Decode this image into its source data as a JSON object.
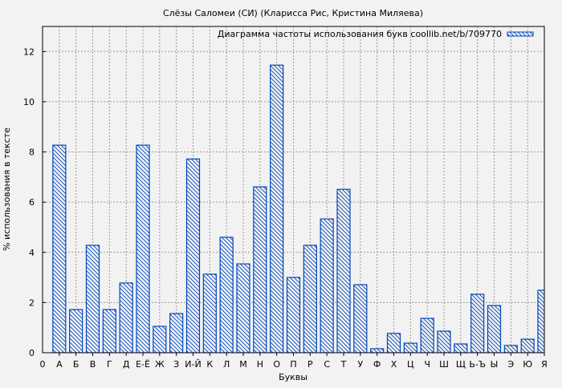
{
  "chart_data": {
    "type": "bar",
    "title": "Слёзы Саломеи (СИ) (Кларисса Рис, Кристина Миляева)",
    "xlabel": "Буквы",
    "ylabel": "% использования в тексте",
    "legend": {
      "label": "Диаграмма частоты использования букв coollib.net/b/709770",
      "placement": "top-right"
    },
    "x_origin_label": "0",
    "categories": [
      "А",
      "Б",
      "В",
      "Г",
      "Д",
      "Е-Ё",
      "Ж",
      "З",
      "И-Й",
      "К",
      "Л",
      "М",
      "Н",
      "О",
      "П",
      "Р",
      "С",
      "Т",
      "У",
      "Ф",
      "Х",
      "Ц",
      "Ч",
      "Ш",
      "Щ",
      "Ь-Ъ",
      "Ы",
      "Э",
      "Ю",
      "Я"
    ],
    "values": [
      8.27,
      1.72,
      4.28,
      1.72,
      2.78,
      8.27,
      1.05,
      1.56,
      7.72,
      3.13,
      4.6,
      3.54,
      6.61,
      11.46,
      3.0,
      4.28,
      5.33,
      6.51,
      2.71,
      0.16,
      0.77,
      0.38,
      1.37,
      0.86,
      0.35,
      2.33,
      1.88,
      0.29,
      0.54,
      2.49
    ],
    "ylim": [
      0,
      13
    ],
    "yticks": [
      0,
      2,
      4,
      6,
      8,
      10,
      12
    ],
    "grid": true,
    "bar_color": "#0047bb",
    "background": "#f2f2f2"
  }
}
